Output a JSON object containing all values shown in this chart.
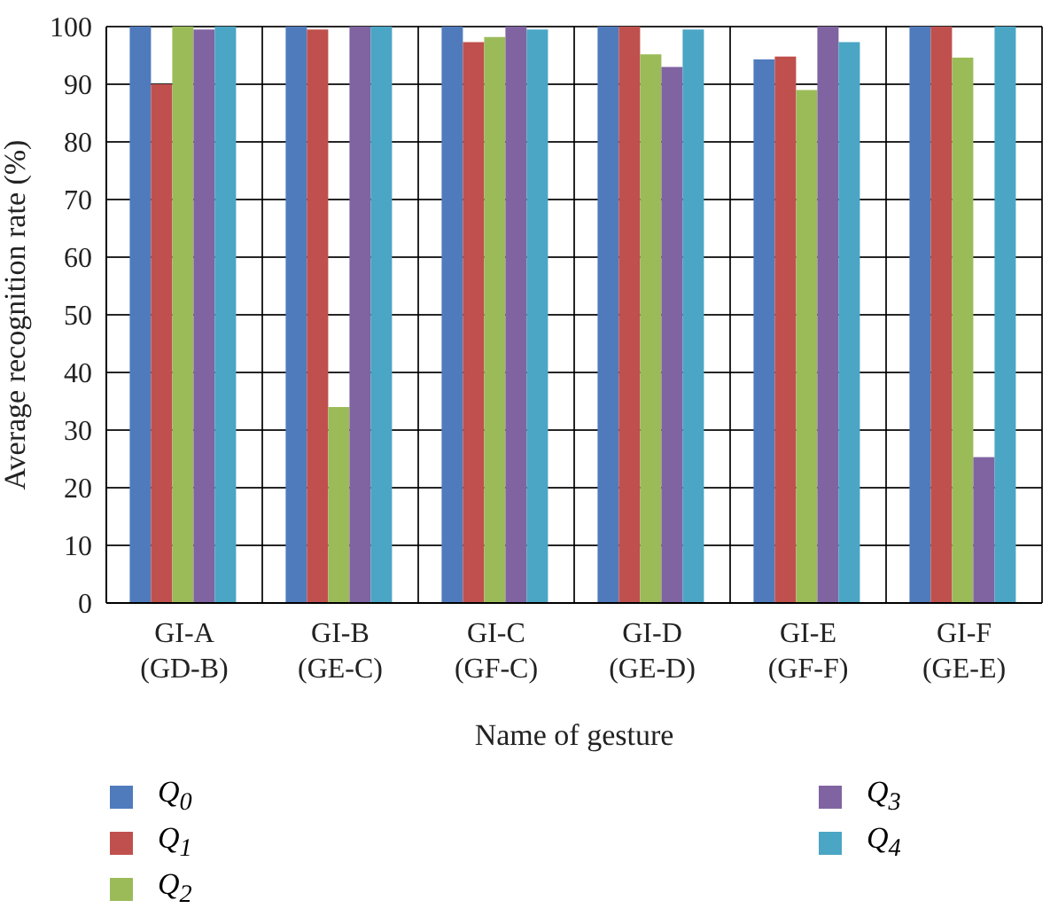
{
  "chart_data": {
    "type": "bar",
    "xlabel": "Name of gesture",
    "ylabel": "Average recognition rate (%)",
    "categories": [
      "GI-A (GD-B)",
      "GI-B (GE-C)",
      "GI-C (GF-C)",
      "GI-D (GE-D)",
      "GI-E (GF-F)",
      "GI-F (GE-E)"
    ],
    "series": [
      {
        "name": "Q$_{0}$",
        "color": "#4f7bbd",
        "values": [
          100,
          100,
          100,
          100,
          94.3,
          100
        ]
      },
      {
        "name": "Q$_{1}$",
        "color": "#c0504d",
        "values": [
          90,
          99.5,
          97.3,
          100,
          94.8,
          100
        ]
      },
      {
        "name": "Q$_{2}$",
        "color": "#9bbb59",
        "values": [
          100,
          34,
          98.2,
          95.2,
          89,
          94.6
        ]
      },
      {
        "name": "Q$_{3}$",
        "color": "#8064a2",
        "values": [
          99.5,
          100,
          100,
          93,
          100,
          25.3
        ]
      },
      {
        "name": "Q$_{4}$",
        "color": "#4aa6c4",
        "values": [
          100,
          100,
          99.5,
          99.5,
          97.3,
          100
        ]
      }
    ],
    "ylim": [
      0,
      100
    ],
    "yticks": [
      0,
      10,
      20,
      30,
      40,
      50,
      60,
      70,
      80,
      90,
      100
    ],
    "grid": true,
    "legend": "bottom"
  }
}
